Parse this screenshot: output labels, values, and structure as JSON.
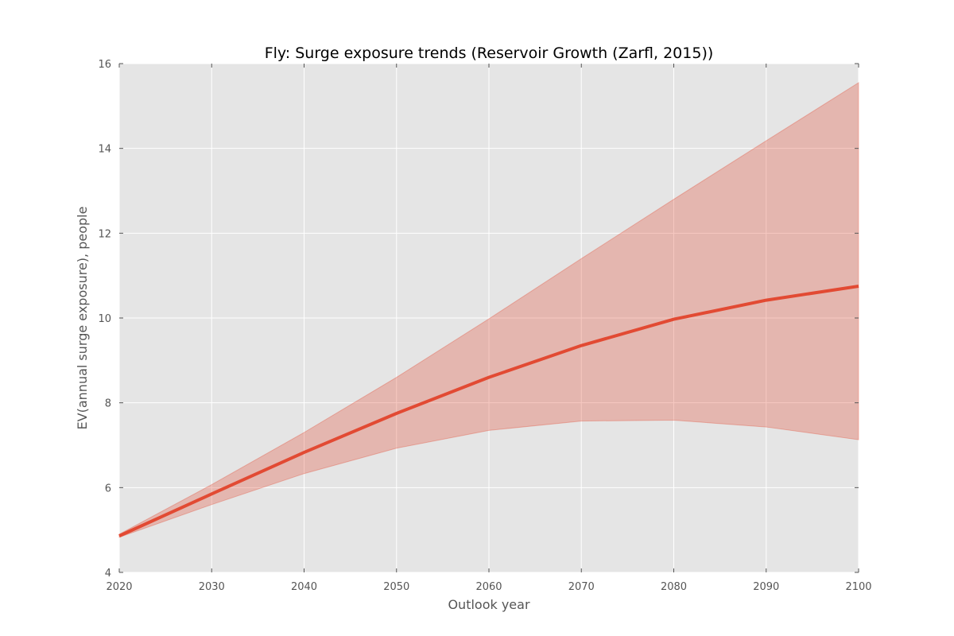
{
  "chart_data": {
    "type": "line",
    "title": "Fly: Surge exposure trends (Reservoir Growth (Zarfl, 2015))",
    "xlabel": "Outlook year",
    "ylabel": "EV(annual surge exposure), people",
    "xlim": [
      2020,
      2100
    ],
    "ylim": [
      4,
      16
    ],
    "xticks": [
      2020,
      2030,
      2040,
      2050,
      2060,
      2070,
      2080,
      2090,
      2100
    ],
    "yticks": [
      4,
      6,
      8,
      10,
      12,
      14,
      16
    ],
    "grid": true,
    "x": [
      2020,
      2030,
      2040,
      2050,
      2060,
      2070,
      2080,
      2090,
      2100
    ],
    "series": [
      {
        "values": [
          4.86,
          5.85,
          6.83,
          7.75,
          8.6,
          9.35,
          9.97,
          10.42,
          10.75
        ],
        "lower": [
          4.83,
          5.6,
          6.33,
          6.93,
          7.35,
          7.57,
          7.59,
          7.43,
          7.13
        ],
        "upper": [
          4.9,
          6.07,
          7.3,
          8.6,
          9.98,
          11.4,
          12.8,
          14.18,
          15.55
        ]
      }
    ],
    "colors": {
      "line": "#e24a33",
      "band": "#e24a33",
      "plot_background": "#e5e5e5",
      "grid": "#ffffff"
    }
  }
}
